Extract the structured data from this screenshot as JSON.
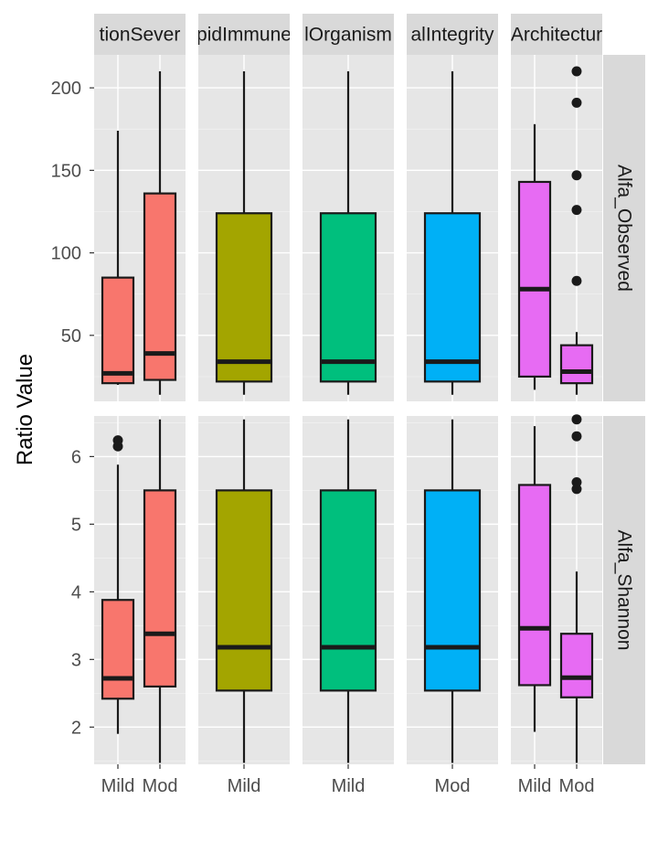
{
  "chart_data": {
    "type": "boxplot",
    "ylabel": "Ratio Value",
    "xlabel": "",
    "facet_columns": [
      "tionSever",
      "pidImmune",
      "lOrganism",
      "alIntegrity",
      "Architectur"
    ],
    "facet_rows": [
      "Alfa_Observed",
      "Alfa_Shannon"
    ],
    "colors": [
      "#F8766D",
      "#A3A500",
      "#00BF7D",
      "#00B0F6",
      "#E76BF3"
    ],
    "x_tick_labels": [
      [
        "Mild",
        "Mod"
      ],
      [
        "Mild"
      ],
      [
        "Mild"
      ],
      [
        "Mod"
      ],
      [
        "Mild",
        "Mod"
      ]
    ],
    "rows": [
      {
        "name": "Alfa_Observed",
        "ylim": [
          10,
          220
        ],
        "y_ticks": [
          50,
          100,
          150,
          200
        ],
        "y_tick_labels": [
          "50",
          "100",
          "150",
          "200"
        ],
        "panels": [
          [
            {
              "group": "Mild",
              "min": 20,
              "q1": 21,
              "median": 27,
              "q3": 85,
              "max": 174,
              "outliers": []
            },
            {
              "group": "Mod",
              "min": 14,
              "q1": 23,
              "median": 39,
              "q3": 136,
              "max": 210,
              "outliers": []
            }
          ],
          [
            {
              "group": "Mild",
              "min": 14,
              "q1": 22,
              "median": 34,
              "q3": 124,
              "max": 210,
              "outliers": []
            }
          ],
          [
            {
              "group": "Mild",
              "min": 14,
              "q1": 22,
              "median": 34,
              "q3": 124,
              "max": 210,
              "outliers": []
            }
          ],
          [
            {
              "group": "Mod",
              "min": 14,
              "q1": 22,
              "median": 34,
              "q3": 124,
              "max": 210,
              "outliers": []
            }
          ],
          [
            {
              "group": "Mild",
              "min": 17,
              "q1": 25,
              "median": 78,
              "q3": 143,
              "max": 178,
              "outliers": []
            },
            {
              "group": "Mod",
              "min": 14,
              "q1": 21,
              "median": 28,
              "q3": 44,
              "max": 52,
              "outliers": [
                83,
                126,
                147,
                191,
                210
              ]
            }
          ]
        ]
      },
      {
        "name": "Alfa_Shannon",
        "ylim": [
          1.45,
          6.6
        ],
        "y_ticks": [
          2,
          3,
          4,
          5,
          6
        ],
        "y_tick_labels": [
          "2",
          "3",
          "4",
          "5",
          "6"
        ],
        "panels": [
          [
            {
              "group": "Mild",
              "min": 1.9,
              "q1": 2.42,
              "median": 2.72,
              "q3": 3.88,
              "max": 5.88,
              "outliers": [
                6.15,
                6.24
              ]
            },
            {
              "group": "Mod",
              "min": 1.47,
              "q1": 2.6,
              "median": 3.38,
              "q3": 5.5,
              "max": 6.55,
              "outliers": []
            }
          ],
          [
            {
              "group": "Mild",
              "min": 1.47,
              "q1": 2.54,
              "median": 3.18,
              "q3": 5.5,
              "max": 6.55,
              "outliers": []
            }
          ],
          [
            {
              "group": "Mild",
              "min": 1.47,
              "q1": 2.54,
              "median": 3.18,
              "q3": 5.5,
              "max": 6.55,
              "outliers": []
            }
          ],
          [
            {
              "group": "Mod",
              "min": 1.47,
              "q1": 2.54,
              "median": 3.18,
              "q3": 5.5,
              "max": 6.55,
              "outliers": []
            }
          ],
          [
            {
              "group": "Mild",
              "min": 1.93,
              "q1": 2.62,
              "median": 3.46,
              "q3": 5.58,
              "max": 6.45,
              "outliers": []
            },
            {
              "group": "Mod",
              "min": 1.47,
              "q1": 2.44,
              "median": 2.73,
              "q3": 3.38,
              "max": 4.3,
              "outliers": [
                5.52,
                5.62,
                6.3,
                6.55
              ]
            }
          ]
        ]
      }
    ]
  }
}
